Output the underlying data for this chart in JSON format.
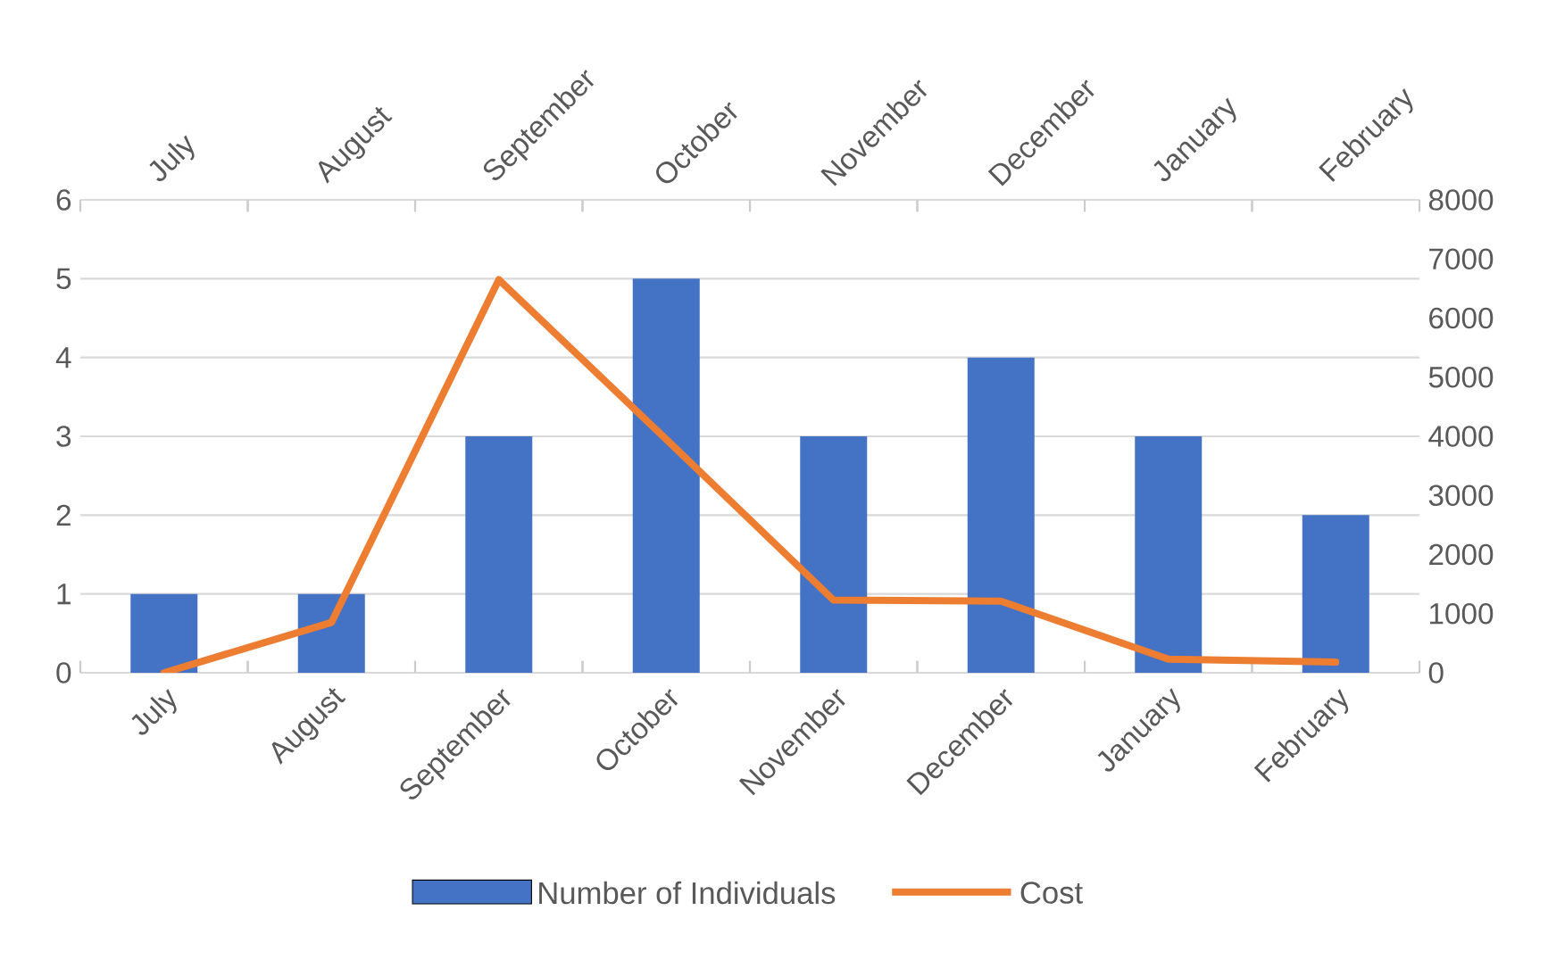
{
  "chart_data": {
    "type": "bar",
    "categories": [
      "July",
      "August",
      "September",
      "October",
      "November",
      "December",
      "January",
      "February"
    ],
    "series": [
      {
        "name": "Number of Individuals",
        "color": "#4472c4",
        "values": [
          1,
          1,
          3,
          5,
          3,
          4,
          3,
          2
        ]
      },
      {
        "name": "Cost",
        "type": "line",
        "axis": "y2",
        "color": "#ed7d31",
        "values": [
          0,
          850,
          6650,
          3950,
          1230,
          1210,
          230,
          180
        ]
      }
    ],
    "ylim": [
      0,
      6
    ],
    "yticks": [
      0,
      1,
      2,
      3,
      4,
      5,
      6
    ],
    "y2lim": [
      0,
      8000
    ],
    "y2ticks": [
      0,
      1000,
      2000,
      3000,
      4000,
      5000,
      6000,
      7000,
      8000
    ],
    "grid": "y",
    "legend": "bottom"
  }
}
